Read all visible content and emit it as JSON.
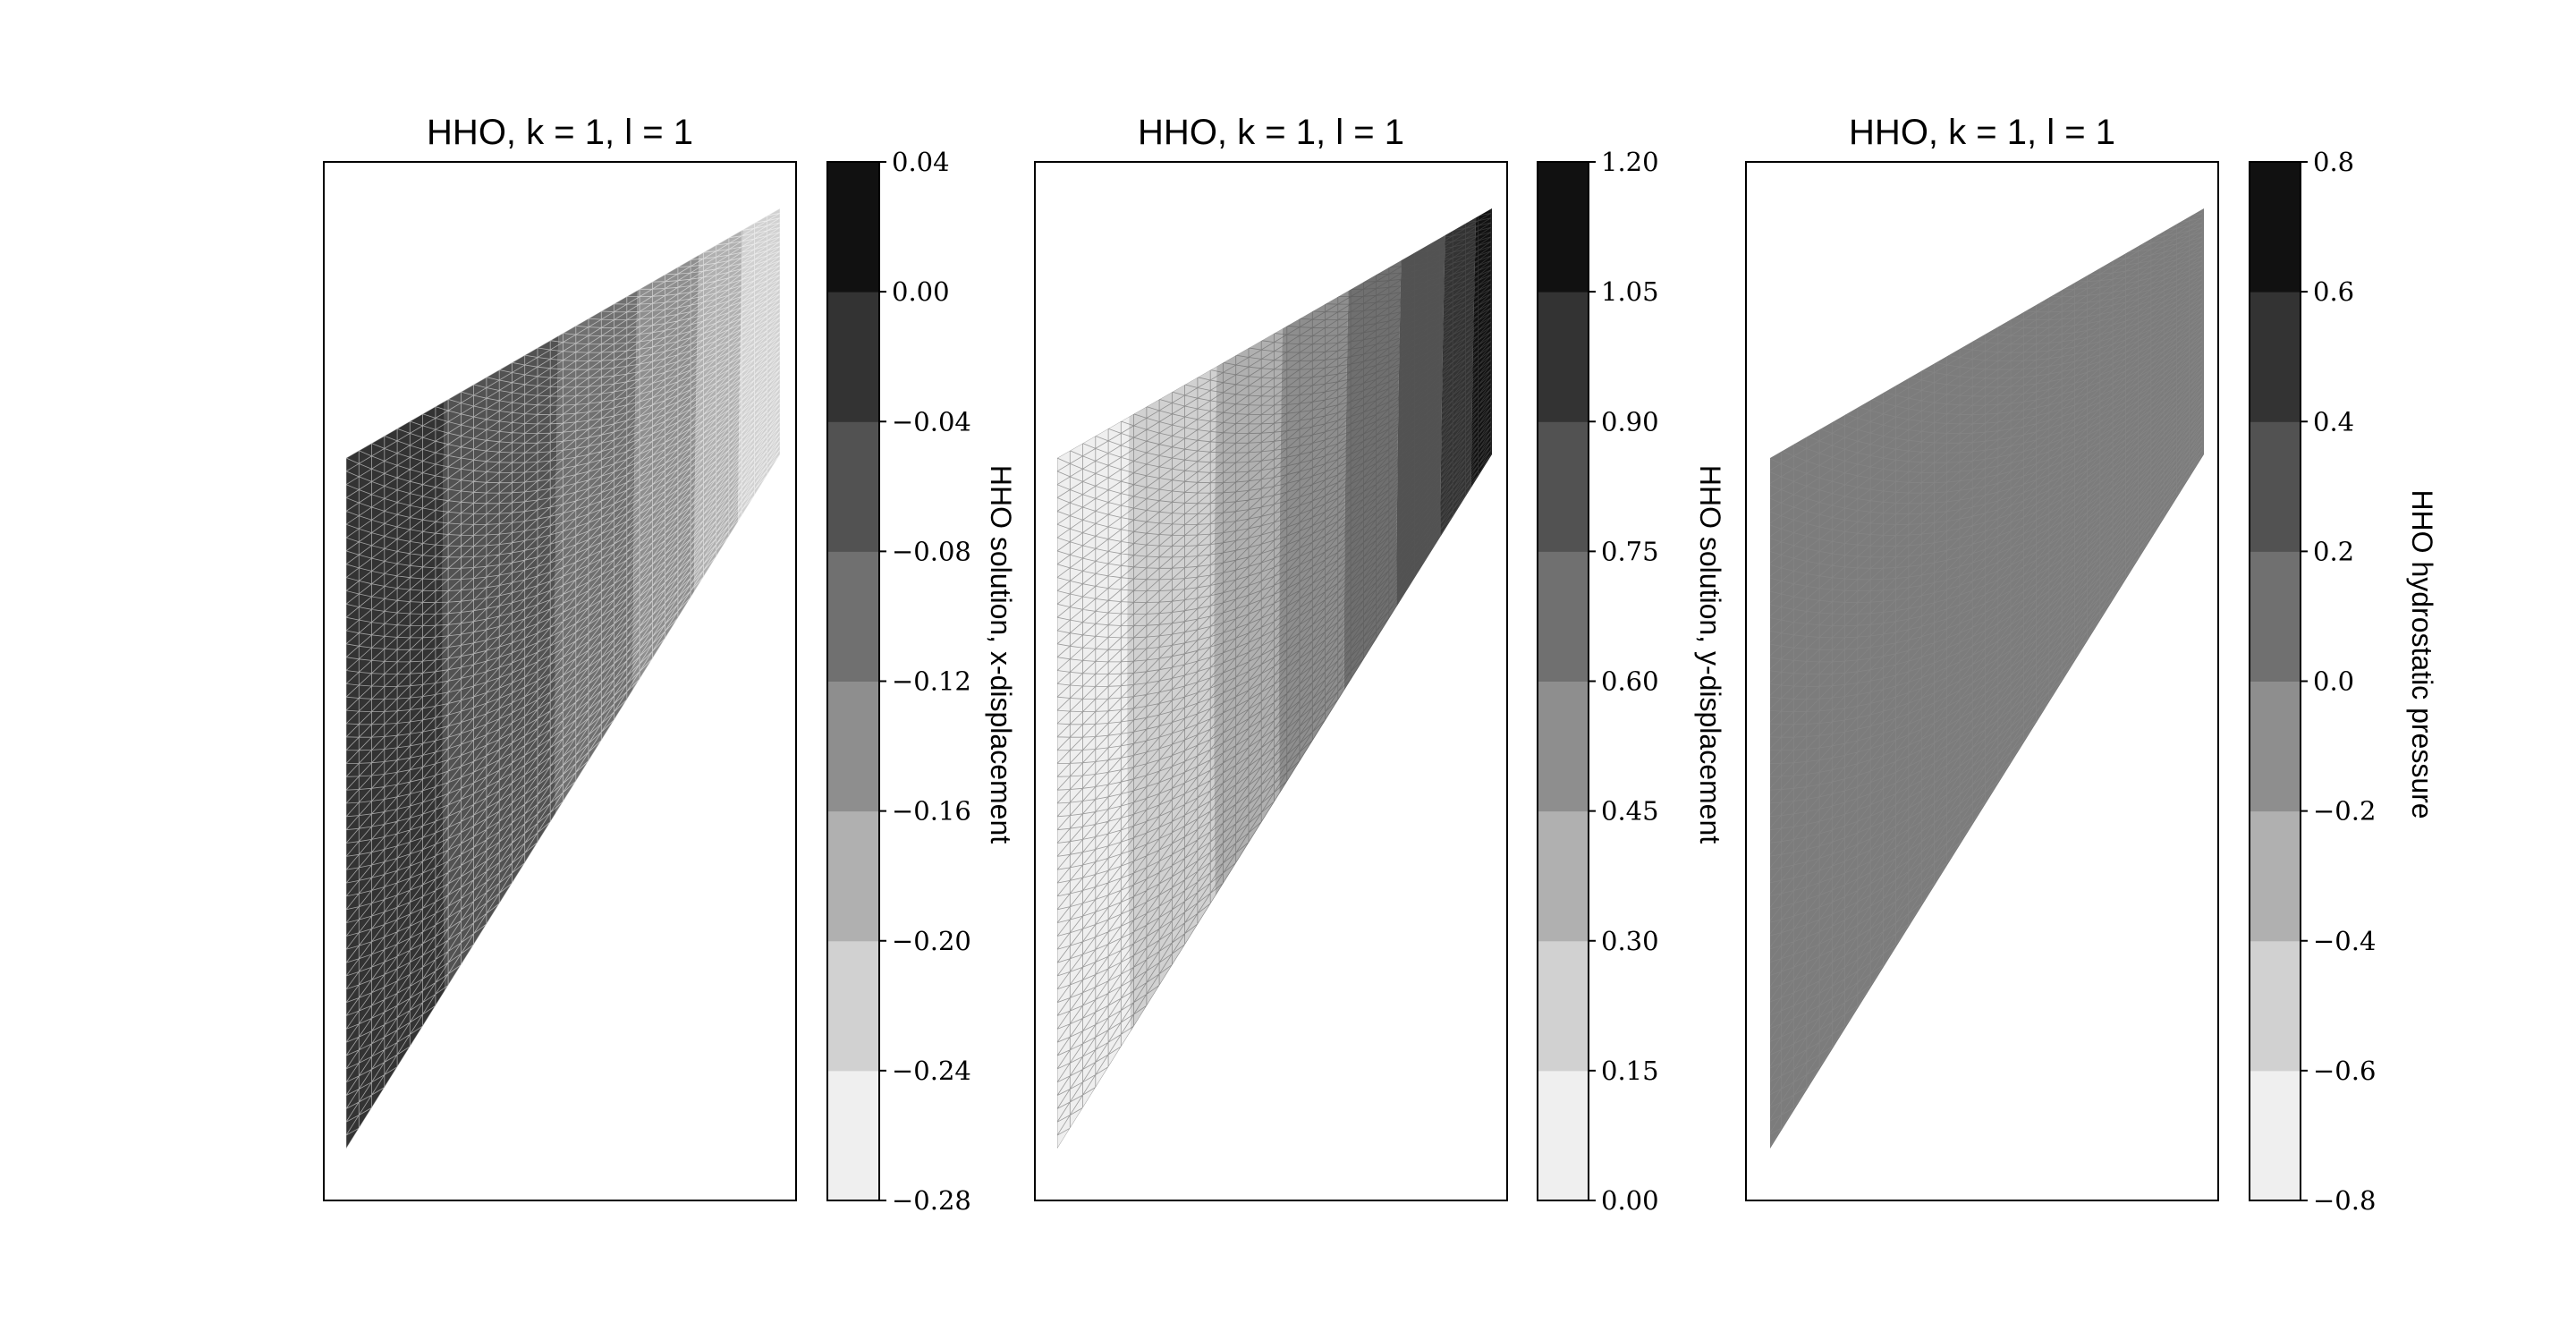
{
  "chart_data": [
    {
      "type": "heatmap",
      "title": "HHO, k = 1, l = 1",
      "colorbar": {
        "label": "HHO solution, x-displacement",
        "ticks": [
          "0.04",
          "0.00",
          "−0.04",
          "−0.08",
          "−0.12",
          "−0.16",
          "−0.20",
          "−0.24",
          "−0.28"
        ],
        "range": [
          -0.28,
          0.04
        ],
        "levels": 8
      },
      "bands": [
        {
          "from": 0.0,
          "to": 0.24,
          "level": 6
        },
        {
          "from": 0.24,
          "to": 0.5,
          "level": 5
        },
        {
          "from": 0.5,
          "to": 0.68,
          "level": 4
        },
        {
          "from": 0.68,
          "to": 0.82,
          "level": 3
        },
        {
          "from": 0.82,
          "to": 0.92,
          "level": 2
        },
        {
          "from": 0.92,
          "to": 1.0,
          "level": 1
        }
      ],
      "mesh_color": "#ffffff"
    },
    {
      "type": "heatmap",
      "title": "HHO, k = 1, l = 1",
      "colorbar": {
        "label": "HHO solution, y-displacement",
        "ticks": [
          "1.20",
          "1.05",
          "0.90",
          "0.75",
          "0.60",
          "0.45",
          "0.30",
          "0.15",
          "0.00"
        ],
        "range": [
          0.0,
          1.2
        ],
        "levels": 8
      },
      "bands": [
        {
          "from": 0.0,
          "to": 0.18,
          "level": 0
        },
        {
          "from": 0.18,
          "to": 0.38,
          "level": 1
        },
        {
          "from": 0.38,
          "to": 0.53,
          "level": 2
        },
        {
          "from": 0.53,
          "to": 0.68,
          "level": 3
        },
        {
          "from": 0.68,
          "to": 0.8,
          "level": 4
        },
        {
          "from": 0.8,
          "to": 0.9,
          "level": 5
        },
        {
          "from": 0.9,
          "to": 0.97,
          "level": 6
        },
        {
          "from": 0.97,
          "to": 1.0,
          "level": 7
        }
      ],
      "mesh_color": "#555555"
    },
    {
      "type": "heatmap",
      "title": "HHO, k = 1, l = 1",
      "colorbar": {
        "label": "HHO hydrostatic pressure",
        "ticks": [
          "0.8",
          "0.6",
          "0.4",
          "0.2",
          "0.0",
          "−0.2",
          "−0.4",
          "−0.6",
          "−0.8"
        ],
        "range": [
          -0.8,
          0.8
        ],
        "levels": 8
      },
      "bands": [
        {
          "from": 0.0,
          "to": 1.0,
          "level": 3.6
        }
      ],
      "mesh_color": "#8a8a8a"
    }
  ],
  "colors": [
    "#efefef",
    "#d1d1d1",
    "#b0b0b0",
    "#8e8e8e",
    "#707070",
    "#525252",
    "#333333",
    "#111111"
  ]
}
